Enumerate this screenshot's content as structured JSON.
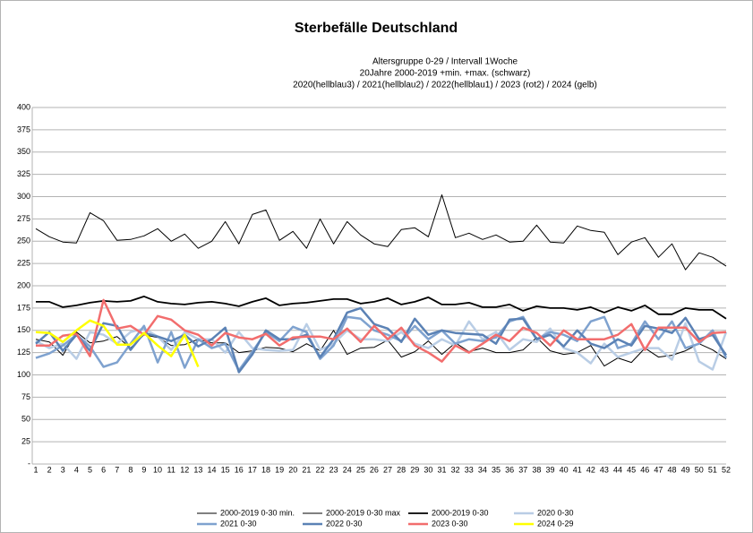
{
  "chart_data": {
    "type": "line",
    "title": "Sterbefälle Deutschland",
    "subtitle": [
      "Altersgruppe 0-29 / Intervall 1Woche",
      "20Jahre 2000-2019 +min. +max. (schwarz)",
      "2020(hellblau3) / 2021(hellblau2) / 2022(hellblau1) / 2023 (rot2) / 2024 (gelb)"
    ],
    "categories": [
      "1",
      "2",
      "3",
      "4",
      "5",
      "6",
      "7",
      "8",
      "9",
      "10",
      "11",
      "12",
      "13",
      "14",
      "15",
      "16",
      "17",
      "18",
      "19",
      "20",
      "21",
      "22",
      "23",
      "24",
      "25",
      "26",
      "27",
      "28",
      "29",
      "30",
      "31",
      "32",
      "33",
      "34",
      "35",
      "36",
      "37",
      "38",
      "39",
      "40",
      "41",
      "42",
      "43",
      "44",
      "45",
      "46",
      "47",
      "48",
      "49",
      "50",
      "51",
      "52"
    ],
    "ylim": [
      0,
      400
    ],
    "yticks": [
      {
        "value": 0,
        "label": "-"
      },
      25,
      50,
      75,
      100,
      125,
      150,
      175,
      200,
      225,
      250,
      275,
      300,
      325,
      350,
      375,
      400
    ],
    "grid": true,
    "legend": "bottom",
    "series": [
      {
        "name": "2000-2019 0-30 min.",
        "color": "#000000",
        "width": 1,
        "values": [
          140,
          137,
          122,
          148,
          136,
          138,
          143,
          130,
          145,
          142,
          133,
          134,
          140,
          136,
          136,
          125,
          127,
          131,
          130,
          126,
          135,
          127,
          150,
          123,
          130,
          131,
          139,
          120,
          126,
          138,
          123,
          136,
          126,
          130,
          125,
          125,
          128,
          142,
          127,
          123,
          125,
          133,
          110,
          119,
          114,
          130,
          120,
          122,
          127,
          135,
          128,
          118
        ]
      },
      {
        "name": "2000-2019 0-30 max",
        "color": "#000000",
        "width": 1,
        "values": [
          264,
          255,
          249,
          248,
          282,
          273,
          251,
          252,
          256,
          264,
          250,
          258,
          242,
          250,
          272,
          247,
          280,
          285,
          251,
          261,
          242,
          275,
          247,
          272,
          257,
          247,
          244,
          263,
          265,
          255,
          302,
          254,
          259,
          252,
          257,
          249,
          250,
          268,
          249,
          248,
          267,
          262,
          260,
          235,
          249,
          254,
          232,
          247,
          218,
          237,
          232,
          222
        ]
      },
      {
        "name": "2000-2019 0-30",
        "color": "#000000",
        "width": 1.8,
        "values": [
          182,
          182,
          176,
          178,
          181,
          183,
          182,
          183,
          188,
          182,
          180,
          179,
          181,
          182,
          180,
          177,
          182,
          186,
          178,
          180,
          181,
          183,
          185,
          185,
          180,
          182,
          186,
          179,
          182,
          187,
          179,
          179,
          181,
          176,
          176,
          179,
          172,
          177,
          175,
          175,
          173,
          176,
          170,
          176,
          172,
          178,
          168,
          168,
          175,
          173,
          173,
          163
        ]
      },
      {
        "name": "2020 0-30",
        "color": "#b9cde5",
        "width": 2.5,
        "values": [
          138,
          130,
          135,
          118,
          148,
          145,
          135,
          148,
          152,
          143,
          128,
          148,
          140,
          140,
          125,
          148,
          130,
          128,
          127,
          128,
          157,
          128,
          135,
          150,
          140,
          140,
          138,
          148,
          135,
          130,
          140,
          133,
          160,
          140,
          148,
          128,
          140,
          137,
          152,
          130,
          125,
          113,
          135,
          120,
          125,
          130,
          130,
          117,
          158,
          115,
          106,
          148
        ]
      },
      {
        "name": "2021 0-30",
        "color": "#7fa2cf",
        "width": 2.5,
        "values": [
          119,
          124,
          133,
          145,
          132,
          109,
          114,
          135,
          155,
          114,
          148,
          108,
          140,
          130,
          135,
          105,
          126,
          148,
          138,
          154,
          148,
          118,
          133,
          165,
          163,
          150,
          145,
          138,
          155,
          140,
          150,
          135,
          140,
          138,
          142,
          160,
          165,
          140,
          148,
          145,
          138,
          160,
          165,
          130,
          135,
          160,
          140,
          160,
          130,
          135,
          150,
          119
        ]
      },
      {
        "name": "2022 0-30",
        "color": "#5b82b5",
        "width": 2.5,
        "values": [
          135,
          148,
          127,
          145,
          127,
          158,
          155,
          128,
          147,
          143,
          138,
          145,
          132,
          140,
          153,
          103,
          123,
          150,
          140,
          140,
          145,
          120,
          140,
          170,
          175,
          157,
          152,
          137,
          163,
          145,
          150,
          147,
          146,
          145,
          135,
          162,
          163,
          140,
          145,
          132,
          150,
          135,
          130,
          140,
          133,
          155,
          152,
          147,
          164,
          140,
          145,
          122
        ]
      },
      {
        "name": "2023 0-30",
        "color": "#f26d6d",
        "width": 2.5,
        "values": [
          133,
          133,
          144,
          146,
          121,
          184,
          152,
          155,
          145,
          166,
          162,
          150,
          145,
          133,
          147,
          142,
          140,
          146,
          133,
          142,
          143,
          143,
          140,
          152,
          137,
          155,
          140,
          153,
          133,
          125,
          115,
          133,
          125,
          135,
          145,
          138,
          153,
          147,
          133,
          150,
          140,
          140,
          140,
          145,
          157,
          128,
          153,
          153,
          153,
          137,
          147,
          148
        ]
      },
      {
        "name": "2024 0-29",
        "color": "#ffff00",
        "width": 2.5,
        "values": [
          148,
          147,
          137,
          150,
          161,
          155,
          134,
          134,
          147,
          133,
          121,
          145,
          109,
          null,
          null,
          null,
          null,
          null,
          null,
          null,
          null,
          null,
          null,
          null,
          null,
          null,
          null,
          null,
          null,
          null,
          null,
          null,
          null,
          null,
          null,
          null,
          null,
          null,
          null,
          null,
          null,
          null,
          null,
          null,
          null,
          null,
          null,
          null,
          null,
          null,
          null,
          null
        ]
      }
    ]
  }
}
